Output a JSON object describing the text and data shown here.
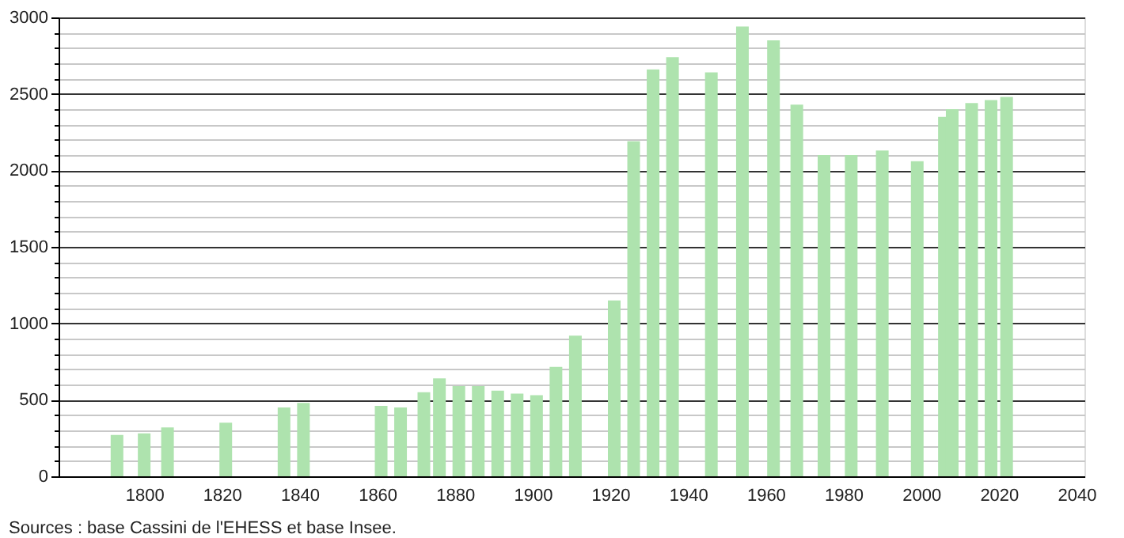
{
  "chart_data": {
    "type": "bar",
    "x": [
      1793,
      1800,
      1806,
      1821,
      1836,
      1841,
      1861,
      1866,
      1872,
      1876,
      1881,
      1886,
      1891,
      1896,
      1901,
      1906,
      1911,
      1921,
      1926,
      1931,
      1936,
      1946,
      1954,
      1962,
      1968,
      1975,
      1982,
      1990,
      1999,
      2006,
      2008,
      2013,
      2018,
      2022
    ],
    "values": [
      270,
      280,
      320,
      350,
      450,
      480,
      460,
      450,
      550,
      640,
      590,
      590,
      560,
      540,
      530,
      715,
      920,
      1150,
      2190,
      2660,
      2740,
      2640,
      2940,
      2850,
      2430,
      2100,
      2100,
      2130,
      2060,
      2350,
      2400,
      2440,
      2460,
      2480
    ],
    "color": "#aee3ae",
    "xlim": [
      1780,
      2040
    ],
    "xticks": [
      1800,
      1820,
      1840,
      1860,
      1880,
      1900,
      1920,
      1940,
      1960,
      1980,
      2000,
      2020,
      2040
    ],
    "ylim": [
      0,
      3000
    ],
    "yticks": [
      0,
      {
        "value": 100,
        "label": null
      },
      {
        "value": 200,
        "label": null
      },
      {
        "value": 300,
        "label": null
      },
      {
        "value": 400,
        "label": null
      },
      500,
      {
        "value": 600,
        "label": null
      },
      {
        "value": 700,
        "label": null
      },
      {
        "value": 800,
        "label": null
      },
      {
        "value": 900,
        "label": null
      },
      1000,
      {
        "value": 1100,
        "label": null
      },
      {
        "value": 1200,
        "label": null
      },
      {
        "value": 1300,
        "label": null
      },
      {
        "value": 1400,
        "label": null
      },
      1500,
      {
        "value": 1600,
        "label": null
      },
      {
        "value": 1700,
        "label": null
      },
      {
        "value": 1800,
        "label": null
      },
      {
        "value": 1900,
        "label": null
      },
      2000,
      {
        "value": 2100,
        "label": null
      },
      {
        "value": 2200,
        "label": null
      },
      {
        "value": 2300,
        "label": null
      },
      {
        "value": 2400,
        "label": null
      },
      2500,
      {
        "value": 2600,
        "label": null
      },
      {
        "value": 2700,
        "label": null
      },
      {
        "value": 2800,
        "label": null
      },
      {
        "value": 2900,
        "label": null
      },
      3000
    ],
    "grid": "y",
    "annotations": [
      "Sources : base Cassini de l'EHESS et base Insee."
    ]
  }
}
